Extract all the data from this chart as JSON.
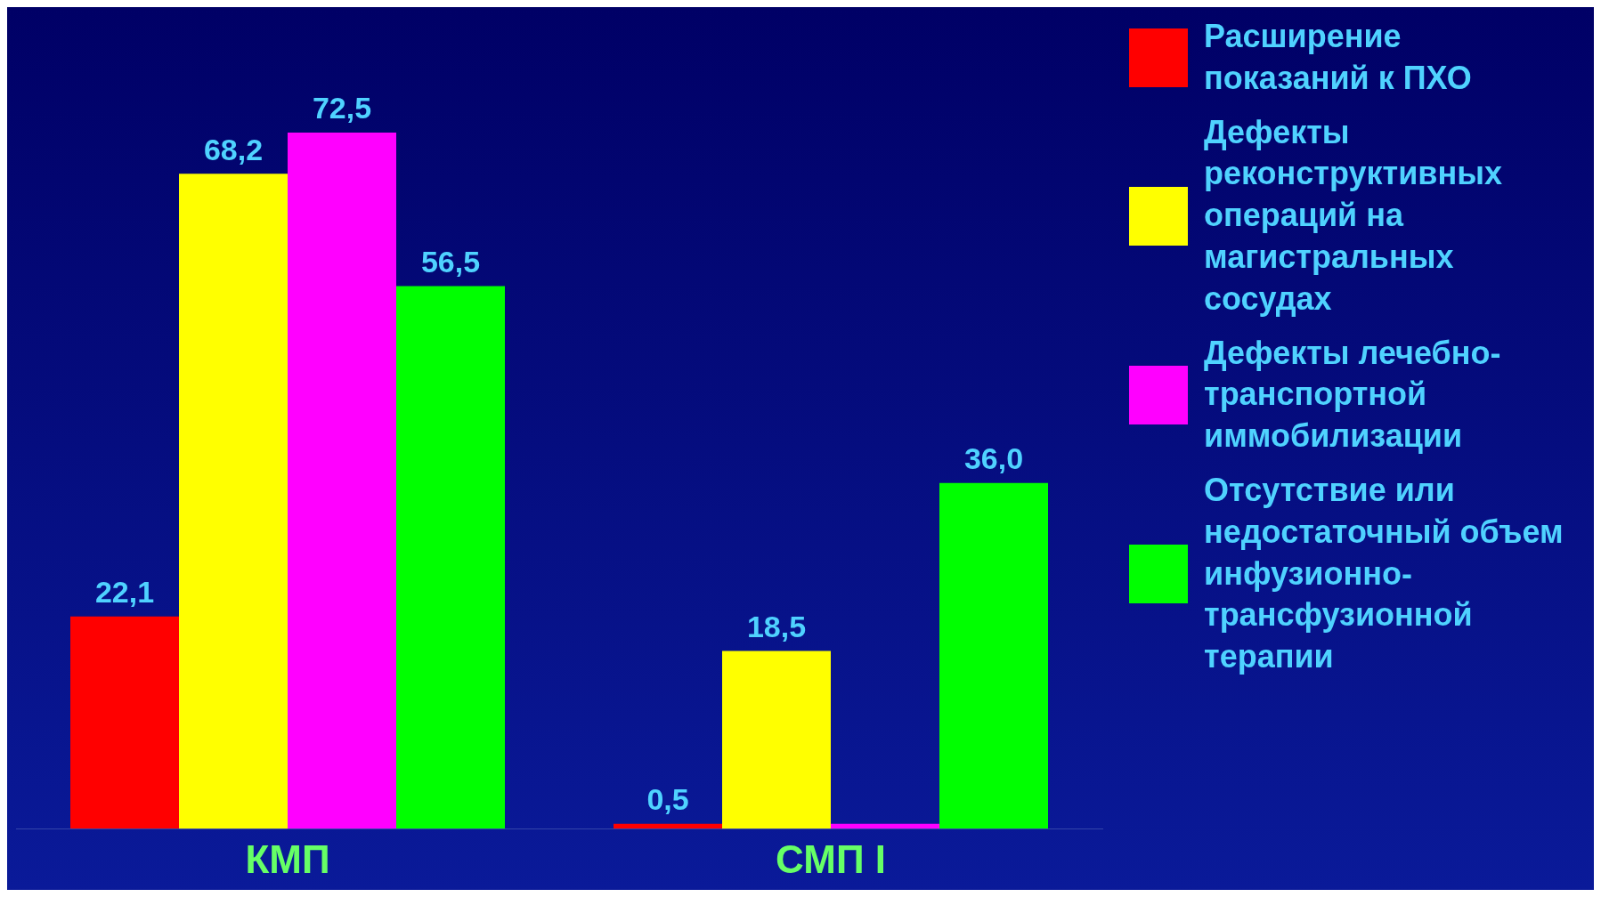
{
  "chart_data": {
    "type": "bar",
    "categories": [
      "КМП",
      "СМП I"
    ],
    "series": [
      {
        "name": "Расширение показаний к ПХО",
        "color": "#ff0000",
        "values": [
          22.1,
          0.5
        ],
        "value_labels": [
          "22,1",
          "0,5"
        ]
      },
      {
        "name": "Дефекты реконструктивных операций на магистральных сосудах",
        "color": "#ffff00",
        "values": [
          68.2,
          18.5
        ],
        "value_labels": [
          "68,2",
          "18,5"
        ]
      },
      {
        "name": "Дефекты лечебно-транспортной иммобилизации",
        "color": "#ff00ff",
        "values": [
          72.5,
          0.5
        ],
        "value_labels": [
          "72,5",
          null
        ]
      },
      {
        "name": "Отсутствие  или недостаточный объем инфузионно-трансфузионной терапии",
        "color": "#00ff00",
        "values": [
          56.5,
          36.0
        ],
        "value_labels": [
          "56,5",
          "36,0"
        ]
      }
    ],
    "legend": "right",
    "grid": false
  }
}
